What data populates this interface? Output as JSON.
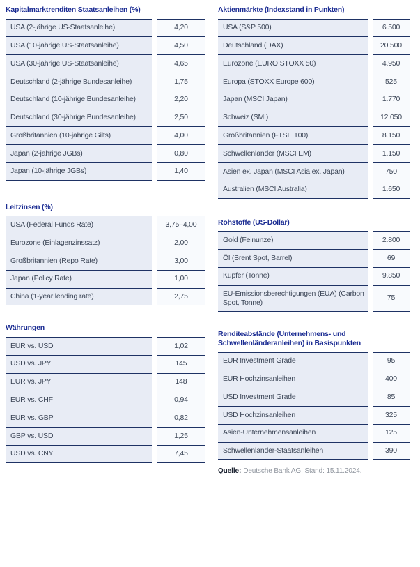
{
  "colors": {
    "title_blue": "#1c2d93",
    "line_navy": "#1e3264",
    "label_cell_bg": "#e8ecf5",
    "value_cell_bg": "#f8fafd",
    "cell_text": "#3c4657",
    "source_text_gray": "#8f959e"
  },
  "tables": {
    "kapitalmarkt": {
      "title": "Kapitalmarktrenditen Staatsanleihen (%)",
      "rows": [
        {
          "label": "USA (2-jährige US-Staatsanleihe)",
          "value": "4,20"
        },
        {
          "label": "USA (10-jährige US-Staatsanleihe)",
          "value": "4,50"
        },
        {
          "label": "USA (30-jährige US-Staatsanleihe)",
          "value": "4,65"
        },
        {
          "label": "Deutschland (2-jährige Bundesanleihe)",
          "value": "1,75"
        },
        {
          "label": "Deutschland (10-jährige Bundesanleihe)",
          "value": "2,20"
        },
        {
          "label": "Deutschland (30-jährige Bundesanleihe)",
          "value": "2,50"
        },
        {
          "label": "Großbritannien (10-jährige Gilts)",
          "value": "4,00"
        },
        {
          "label": "Japan (2-jährige JGBs)",
          "value": "0,80"
        },
        {
          "label": "Japan (10-jährige JGBs)",
          "value": "1,40"
        }
      ]
    },
    "leitzinsen": {
      "title": "Leitzinsen (%)",
      "rows": [
        {
          "label": "USA (Federal Funds Rate)",
          "value": "3,75–4,00"
        },
        {
          "label": "Eurozone (Einlagenzinssatz)",
          "value": "2,00"
        },
        {
          "label": "Großbritannien (Repo Rate)",
          "value": "3,00"
        },
        {
          "label": "Japan (Policy Rate)",
          "value": "1,00"
        },
        {
          "label": "China (1-year lending rate)",
          "value": "2,75"
        }
      ]
    },
    "waehrungen": {
      "title": "Währungen",
      "rows": [
        {
          "label": "EUR vs. USD",
          "value": "1,02"
        },
        {
          "label": "USD vs. JPY",
          "value": "145"
        },
        {
          "label": "EUR vs. JPY",
          "value": "148"
        },
        {
          "label": "EUR vs. CHF",
          "value": "0,94"
        },
        {
          "label": "EUR vs. GBP",
          "value": "0,82"
        },
        {
          "label": "GBP vs. USD",
          "value": "1,25"
        },
        {
          "label": "USD vs. CNY",
          "value": "7,45"
        }
      ]
    },
    "aktien": {
      "title": "Aktienmärkte (Indexstand in Punkten)",
      "rows": [
        {
          "label": "USA (S&P 500)",
          "value": "6.500"
        },
        {
          "label": "Deutschland (DAX)",
          "value": "20.500"
        },
        {
          "label": "Eurozone (EURO STOXX 50)",
          "value": "4.950"
        },
        {
          "label": "Europa (STOXX Europe 600)",
          "value": "525"
        },
        {
          "label": "Japan (MSCI Japan)",
          "value": "1.770"
        },
        {
          "label": "Schweiz (SMI)",
          "value": "12.050"
        },
        {
          "label": "Großbritannien (FTSE 100)",
          "value": "8.150"
        },
        {
          "label": "Schwellenländer (MSCI EM)",
          "value": "1.150"
        },
        {
          "label": "Asien ex. Japan (MSCI Asia ex. Japan)",
          "value": "750"
        },
        {
          "label": "Australien (MSCI Australia)",
          "value": "1.650"
        }
      ]
    },
    "rohstoffe": {
      "title": "Rohstoffe (US-Dollar)",
      "rows": [
        {
          "label": "Gold (Feinunze)",
          "value": "2.800"
        },
        {
          "label": "Öl (Brent Spot, Barrel)",
          "value": "69"
        },
        {
          "label": "Kupfer (Tonne)",
          "value": "9.850"
        },
        {
          "label": "EU-Emissionsberechtigungen (EUA) (Carbon Spot, Tonne)",
          "value": "75"
        }
      ]
    },
    "renditeabstaende": {
      "title": "Renditeabstände (Unternehmens- und Schwellenländeranleihen) in Basispunkten",
      "rows": [
        {
          "label": "EUR Investment Grade",
          "value": "95"
        },
        {
          "label": "EUR Hochzinsanleihen",
          "value": "400"
        },
        {
          "label": "USD Investment Grade",
          "value": "85"
        },
        {
          "label": "USD Hochzinsanleihen",
          "value": "325"
        },
        {
          "label": "Asien-Unternehmensanleihen",
          "value": "125"
        },
        {
          "label": "Schwellenländer-Staatsanleihen",
          "value": "390"
        }
      ]
    }
  },
  "footer": {
    "source_label": "Quelle:",
    "source_text": "Deutsche Bank AG; Stand: 15.11.2024."
  }
}
